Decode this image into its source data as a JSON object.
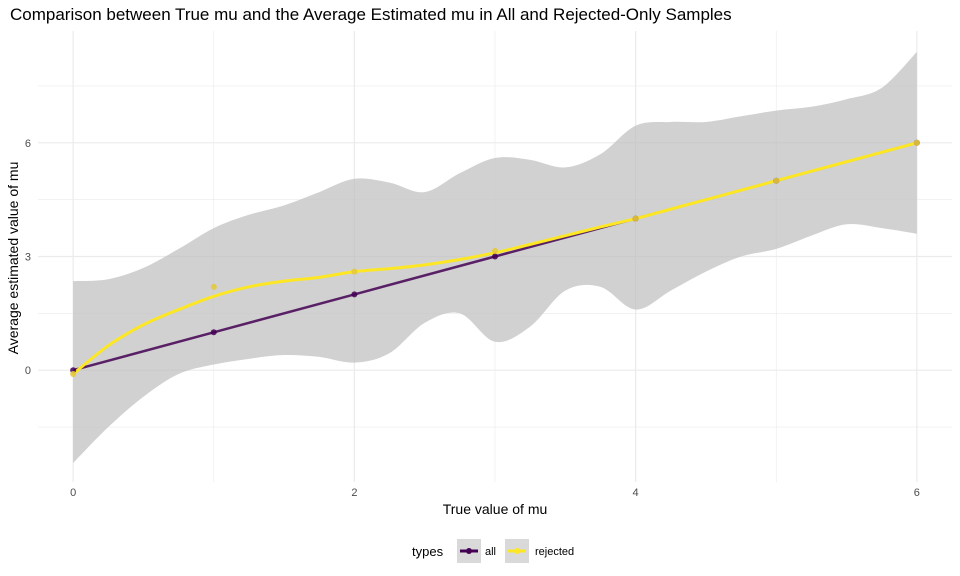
{
  "chart_data": {
    "type": "line",
    "title": "Comparison between True mu and the Average Estimated mu in All and Rejected-Only Samples",
    "xlabel": "True value of mu",
    "ylabel": "Average estimated value of mu",
    "xlim": [
      -0.25,
      6.25
    ],
    "ylim": [
      -2.95,
      8.95
    ],
    "x_ticks": [
      0,
      2,
      4,
      6
    ],
    "x_tick_labels": [
      "0",
      "2",
      "4",
      "6"
    ],
    "y_ticks": [
      0,
      3,
      6
    ],
    "y_tick_labels": [
      "0",
      "3",
      "6"
    ],
    "grid": true,
    "legend_position": "bottom",
    "legend_title": "types",
    "colors": {
      "all": "#440154",
      "rejected": "#FDE725",
      "band": "#bdbdbd",
      "grid": "#ebebeb"
    },
    "series": [
      {
        "name": "all",
        "x": [
          0,
          1,
          2,
          3,
          4,
          5,
          6
        ],
        "values": [
          0.0,
          1.0,
          2.0,
          3.0,
          4.0,
          5.0,
          6.0
        ]
      },
      {
        "name": "rejected",
        "x": [
          0,
          1,
          2,
          3,
          4,
          5,
          6
        ],
        "values": [
          -0.1,
          2.2,
          2.6,
          3.15,
          4.0,
          5.0,
          6.0
        ]
      }
    ],
    "smooth_rejected": {
      "x": [
        0,
        0.25,
        0.5,
        0.75,
        1.0,
        1.25,
        1.5,
        1.75,
        2.0,
        2.25,
        2.5,
        2.75,
        3.0,
        3.25,
        3.5,
        3.75,
        4.0,
        4.25,
        4.5,
        4.75,
        5.0,
        5.25,
        5.5,
        5.75,
        6.0
      ],
      "y": [
        -0.1,
        0.65,
        1.2,
        1.6,
        1.95,
        2.2,
        2.35,
        2.45,
        2.6,
        2.68,
        2.78,
        2.92,
        3.1,
        3.32,
        3.55,
        3.78,
        4.0,
        4.25,
        4.5,
        4.75,
        5.0,
        5.25,
        5.5,
        5.75,
        6.0
      ],
      "lower": [
        -2.45,
        -1.5,
        -0.7,
        -0.1,
        0.15,
        0.3,
        0.4,
        0.35,
        0.2,
        0.45,
        1.25,
        1.5,
        0.75,
        1.15,
        2.1,
        2.2,
        1.6,
        2.1,
        2.6,
        3.0,
        3.2,
        3.55,
        3.85,
        3.75,
        3.6
      ],
      "upper": [
        2.35,
        2.4,
        2.7,
        3.2,
        3.75,
        4.1,
        4.35,
        4.7,
        5.05,
        4.95,
        4.7,
        5.2,
        5.6,
        5.55,
        5.35,
        5.7,
        6.45,
        6.55,
        6.55,
        6.7,
        6.85,
        6.95,
        7.15,
        7.45,
        8.4
      ]
    }
  }
}
